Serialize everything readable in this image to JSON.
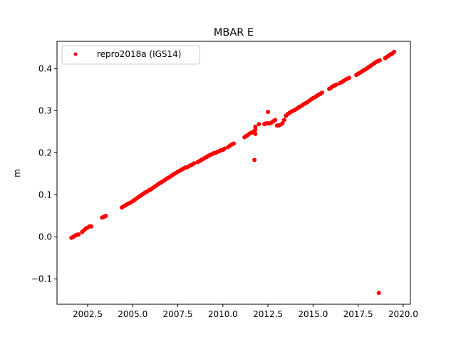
{
  "chart_data": {
    "type": "scatter",
    "title": "MBAR E",
    "xlabel": "",
    "ylabel": "m",
    "xlim": [
      2000.8,
      2020.4
    ],
    "ylim": [
      -0.16,
      0.465
    ],
    "xticks": [
      2002.5,
      2005.0,
      2007.5,
      2010.0,
      2012.5,
      2015.0,
      2017.5,
      2020.0
    ],
    "xtick_labels": [
      "2002.5",
      "2005.0",
      "2007.5",
      "2010.0",
      "2012.5",
      "2015.0",
      "2017.5",
      "2020.0"
    ],
    "yticks": [
      -0.1,
      0.0,
      0.1,
      0.2,
      0.3,
      0.4
    ],
    "ytick_labels": [
      "−0.1",
      "0.0",
      "0.1",
      "0.2",
      "0.3",
      "0.4"
    ],
    "grid": false,
    "legend_position": "top-left",
    "series": [
      {
        "name": "repro2018a (IGS14)",
        "color": "#ff0000",
        "marker": "circle",
        "x": [
          2001.6,
          2001.7,
          2001.8,
          2001.9,
          2002.0,
          2002.2,
          2002.3,
          2002.4,
          2002.5,
          2002.6,
          2002.7,
          2003.3,
          2003.4,
          2003.5,
          2004.4,
          2004.5,
          2004.6,
          2004.7,
          2004.8,
          2004.9,
          2005.0,
          2005.1,
          2005.2,
          2005.3,
          2005.4,
          2005.5,
          2005.6,
          2005.7,
          2005.8,
          2005.9,
          2006.0,
          2006.1,
          2006.2,
          2006.3,
          2006.4,
          2006.5,
          2006.6,
          2006.7,
          2006.8,
          2006.9,
          2007.0,
          2007.1,
          2007.2,
          2007.3,
          2007.4,
          2007.5,
          2007.6,
          2007.7,
          2007.8,
          2007.9,
          2008.0,
          2008.1,
          2008.2,
          2008.3,
          2008.4,
          2008.6,
          2008.7,
          2008.8,
          2008.9,
          2009.0,
          2009.1,
          2009.2,
          2009.3,
          2009.4,
          2009.5,
          2009.6,
          2009.7,
          2009.8,
          2009.9,
          2010.0,
          2010.1,
          2010.3,
          2010.4,
          2010.5,
          2010.6,
          2011.2,
          2011.3,
          2011.4,
          2011.5,
          2011.6,
          2011.7,
          2011.8,
          2011.8,
          2011.8,
          2011.75,
          2012.0,
          2012.3,
          2012.4,
          2012.5,
          2012.5,
          2012.6,
          2012.7,
          2012.8,
          2012.9,
          2013.0,
          2013.1,
          2013.2,
          2013.3,
          2013.4,
          2013.5,
          2013.6,
          2013.7,
          2013.8,
          2013.9,
          2014.0,
          2014.1,
          2014.2,
          2014.3,
          2014.4,
          2014.5,
          2014.6,
          2014.7,
          2014.8,
          2014.9,
          2015.0,
          2015.1,
          2015.2,
          2015.3,
          2015.4,
          2015.5,
          2015.9,
          2016.0,
          2016.1,
          2016.2,
          2016.3,
          2016.5,
          2016.6,
          2016.7,
          2016.8,
          2016.9,
          2017.0,
          2017.4,
          2017.5,
          2017.6,
          2017.7,
          2017.8,
          2017.9,
          2018.0,
          2018.1,
          2018.2,
          2018.3,
          2018.4,
          2018.5,
          2018.6,
          2018.7,
          2018.65,
          2019.0,
          2019.1,
          2019.2,
          2019.3,
          2019.4,
          2019.5
        ],
        "y": [
          -0.002,
          0.0,
          0.003,
          0.005,
          0.006,
          0.012,
          0.016,
          0.02,
          0.022,
          0.025,
          0.025,
          0.046,
          0.048,
          0.05,
          0.07,
          0.073,
          0.075,
          0.078,
          0.08,
          0.082,
          0.085,
          0.088,
          0.091,
          0.094,
          0.097,
          0.1,
          0.103,
          0.106,
          0.108,
          0.111,
          0.113,
          0.116,
          0.119,
          0.122,
          0.125,
          0.128,
          0.13,
          0.133,
          0.136,
          0.139,
          0.141,
          0.144,
          0.147,
          0.15,
          0.152,
          0.155,
          0.157,
          0.16,
          0.162,
          0.165,
          0.165,
          0.168,
          0.17,
          0.172,
          0.175,
          0.178,
          0.18,
          0.183,
          0.185,
          0.188,
          0.19,
          0.193,
          0.195,
          0.197,
          0.199,
          0.2,
          0.202,
          0.204,
          0.206,
          0.207,
          0.21,
          0.214,
          0.217,
          0.22,
          0.222,
          0.237,
          0.24,
          0.243,
          0.246,
          0.248,
          0.25,
          0.255,
          0.262,
          0.245,
          0.183,
          0.268,
          0.268,
          0.27,
          0.27,
          0.297,
          0.27,
          0.272,
          0.275,
          0.278,
          0.265,
          0.265,
          0.267,
          0.27,
          0.278,
          0.288,
          0.292,
          0.295,
          0.298,
          0.3,
          0.302,
          0.305,
          0.308,
          0.31,
          0.313,
          0.316,
          0.318,
          0.321,
          0.324,
          0.327,
          0.33,
          0.332,
          0.335,
          0.338,
          0.34,
          0.343,
          0.352,
          0.355,
          0.358,
          0.36,
          0.362,
          0.366,
          0.368,
          0.371,
          0.374,
          0.376,
          0.378,
          0.385,
          0.388,
          0.39,
          0.393,
          0.396,
          0.398,
          0.401,
          0.404,
          0.407,
          0.41,
          0.413,
          0.416,
          0.418,
          0.42,
          -0.133,
          0.425,
          0.428,
          0.431,
          0.434,
          0.436,
          0.44
        ]
      }
    ]
  }
}
